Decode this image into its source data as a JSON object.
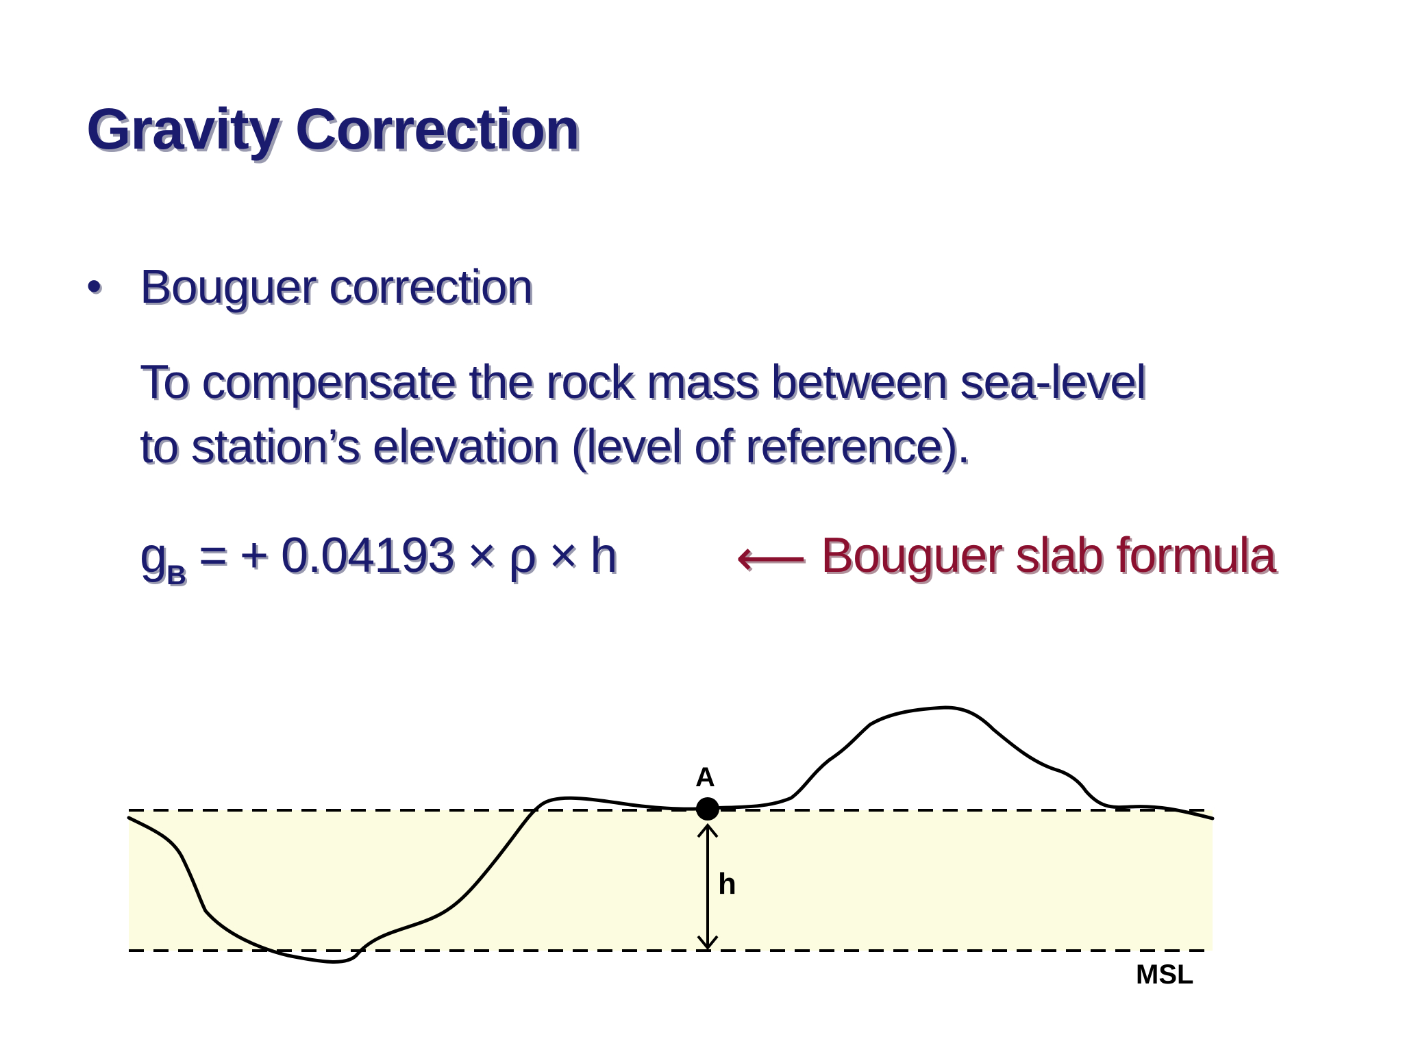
{
  "slide": {
    "title": "Gravity Correction",
    "bullet": {
      "marker": "•",
      "heading": "Bouguer correction",
      "body_lines": [
        "To compensate the rock mass between sea-level",
        "to station’s elevation (level of reference)."
      ]
    },
    "formula": {
      "lhs_symbol": "g",
      "lhs_subscript": "B",
      "rhs": " = + 0.04193 × ρ × h",
      "arrow": "⟵",
      "note": "Bouguer slab formula"
    }
  },
  "diagram": {
    "station_label": "A",
    "height_label": "h",
    "datum_label": "MSL",
    "colors": {
      "slab_fill": "#fcfce0",
      "text_primary": "#1a1a6e",
      "text_accent": "#8b1030",
      "line": "#000000"
    }
  }
}
